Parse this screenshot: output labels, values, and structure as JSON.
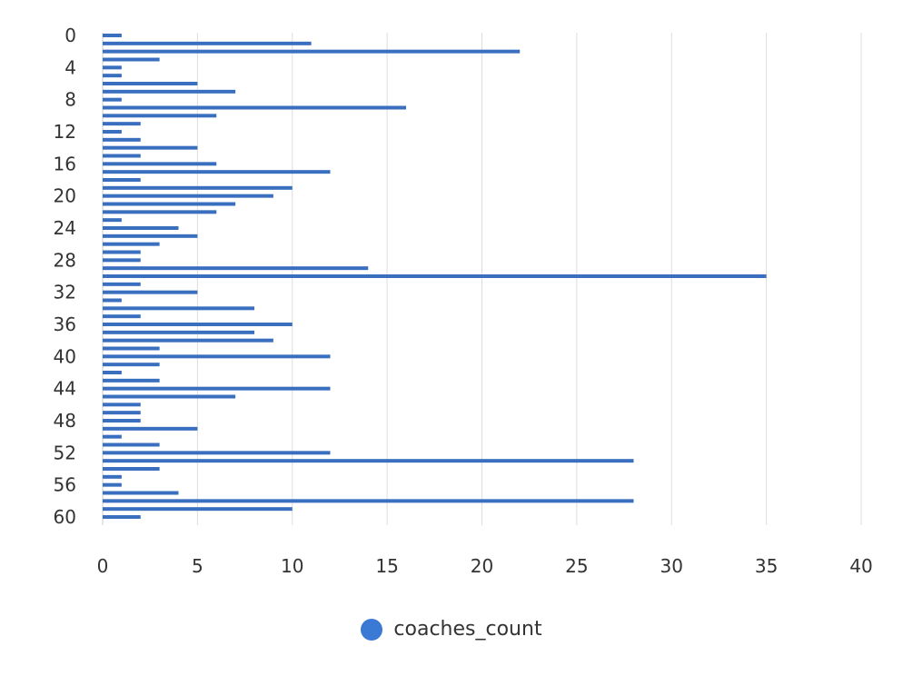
{
  "chart_data": {
    "type": "bar",
    "orientation": "horizontal",
    "title": "",
    "xlabel": "",
    "ylabel": "",
    "categories": [
      0,
      1,
      2,
      3,
      4,
      5,
      6,
      7,
      8,
      9,
      10,
      11,
      12,
      13,
      14,
      15,
      16,
      17,
      18,
      19,
      20,
      21,
      22,
      23,
      24,
      25,
      26,
      27,
      28,
      29,
      30,
      31,
      32,
      33,
      34,
      35,
      36,
      37,
      38,
      39,
      40,
      41,
      42,
      43,
      44,
      45,
      46,
      47,
      48,
      49,
      50,
      51,
      52,
      53,
      54,
      55,
      56,
      57,
      58,
      59,
      60
    ],
    "y_tick_labels": [
      "0",
      "4",
      "8",
      "12",
      "16",
      "20",
      "24",
      "28",
      "32",
      "36",
      "40",
      "44",
      "48",
      "52",
      "56",
      "60"
    ],
    "x_tick_labels": [
      "0",
      "5",
      "10",
      "15",
      "20",
      "25",
      "30",
      "35",
      "40"
    ],
    "xlim": [
      0,
      40
    ],
    "grid": true,
    "legend_position": "bottom",
    "series": [
      {
        "name": "coaches_count",
        "color": "#3a6fbf",
        "values": [
          1,
          11,
          22,
          3,
          1,
          1,
          5,
          7,
          1,
          16,
          6,
          2,
          1,
          2,
          5,
          2,
          6,
          12,
          2,
          10,
          9,
          7,
          6,
          1,
          4,
          5,
          3,
          2,
          2,
          14,
          35,
          2,
          5,
          1,
          8,
          2,
          10,
          8,
          9,
          3,
          12,
          3,
          1,
          3,
          12,
          7,
          2,
          2,
          2,
          5,
          1,
          3,
          12,
          28,
          3,
          1,
          1,
          4,
          28,
          10,
          2
        ]
      }
    ]
  },
  "legend": {
    "label": "coaches_count",
    "color": "#3a7ad4"
  }
}
